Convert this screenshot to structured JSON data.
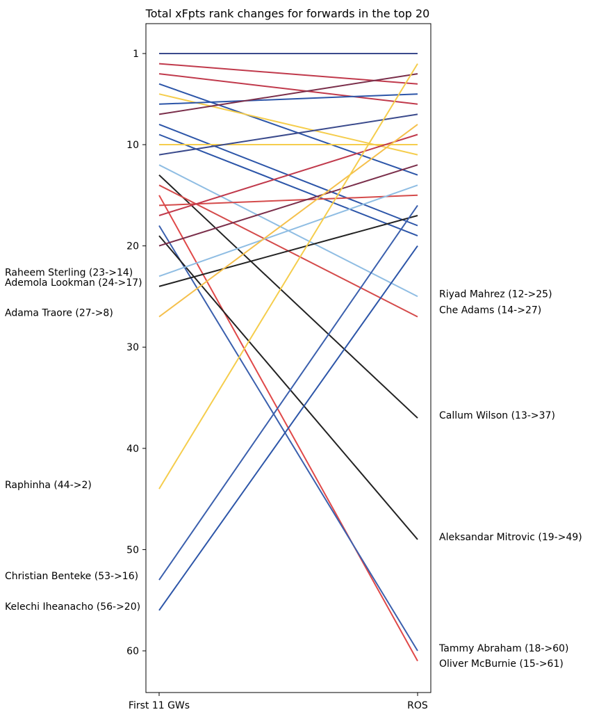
{
  "chart_data": {
    "type": "line",
    "title": "Total xFpts rank changes for forwards in the top 20",
    "x": [
      "First 11 GWs",
      "ROS"
    ],
    "ylim": [
      64,
      -2
    ],
    "y_inverted": true,
    "yticks": [
      1,
      10,
      20,
      30,
      40,
      50,
      60
    ],
    "grid": false,
    "legend": "none",
    "series": [
      {
        "values": [
          1,
          1
        ],
        "color": "#3a4a8c"
      },
      {
        "values": [
          2,
          4
        ],
        "color": "#c0394b"
      },
      {
        "values": [
          3,
          6
        ],
        "color": "#c0394b"
      },
      {
        "values": [
          4,
          13
        ],
        "color": "#2c55a8"
      },
      {
        "values": [
          5,
          11
        ],
        "color": "#f5cd4c"
      },
      {
        "values": [
          6,
          5
        ],
        "color": "#2c55a8"
      },
      {
        "values": [
          7,
          3
        ],
        "color": "#7a2e4a"
      },
      {
        "values": [
          8,
          18
        ],
        "color": "#2c55a8"
      },
      {
        "values": [
          9,
          19
        ],
        "color": "#2c55a8"
      },
      {
        "values": [
          10,
          10
        ],
        "color": "#f5cd4c"
      },
      {
        "values": [
          11,
          7
        ],
        "color": "#3a4a8c"
      },
      {
        "values": [
          12,
          25
        ],
        "color": "#8fbde3"
      },
      {
        "values": [
          13,
          37
        ],
        "color": "#222222"
      },
      {
        "values": [
          14,
          27
        ],
        "color": "#d44a4a"
      },
      {
        "values": [
          15,
          61
        ],
        "color": "#e04848"
      },
      {
        "values": [
          16,
          15
        ],
        "color": "#d44a4a"
      },
      {
        "values": [
          17,
          9
        ],
        "color": "#c0394b"
      },
      {
        "values": [
          18,
          60
        ],
        "color": "#3a5fad"
      },
      {
        "values": [
          19,
          49
        ],
        "color": "#222222"
      },
      {
        "values": [
          20,
          12
        ],
        "color": "#7a2e4a"
      },
      {
        "values": [
          23,
          14
        ],
        "color": "#8fbde3"
      },
      {
        "values": [
          24,
          17
        ],
        "color": "#222222"
      },
      {
        "values": [
          27,
          8
        ],
        "color": "#f5c04c"
      },
      {
        "values": [
          44,
          2
        ],
        "color": "#f5cd4c"
      },
      {
        "values": [
          53,
          16
        ],
        "color": "#3a5fad"
      },
      {
        "values": [
          56,
          20
        ],
        "color": "#2c55a8"
      }
    ],
    "left_annotations": [
      {
        "label": "Raheem Sterling (23->14)",
        "y": 23
      },
      {
        "label": "Ademola Lookman (24->17)",
        "y": 24
      },
      {
        "label": "Adama Traore (27->8)",
        "y": 27
      },
      {
        "label": "Raphinha (44->2)",
        "y": 44
      },
      {
        "label": "Christian Benteke (53->16)",
        "y": 53
      },
      {
        "label": "Kelechi Iheanacho (56->20)",
        "y": 56
      }
    ],
    "right_annotations": [
      {
        "label": "Riyad Mahrez (12->25)",
        "y": 25
      },
      {
        "label": "Che Adams (14->27)",
        "y": 26.6
      },
      {
        "label": "Callum Wilson (13->37)",
        "y": 37
      },
      {
        "label": "Aleksandar Mitrovic (19->49)",
        "y": 49
      },
      {
        "label": "Tammy Abraham (18->60)",
        "y": 60
      },
      {
        "label": "Oliver McBurnie (15->61)",
        "y": 61.5
      }
    ]
  }
}
